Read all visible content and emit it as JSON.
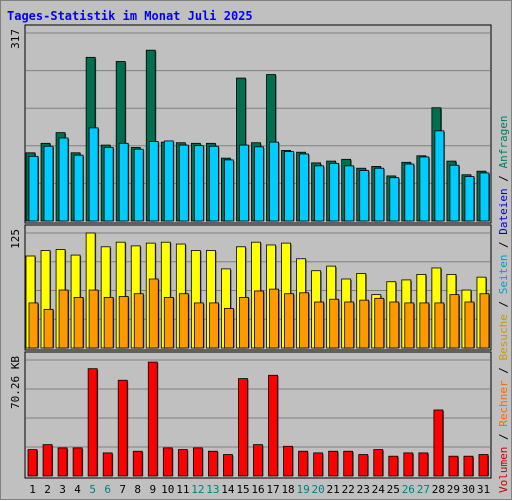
{
  "chart_data": {
    "type": "bar",
    "title": "Tages-Statistik im Monat Juli 2025",
    "days": [
      "1",
      "2",
      "3",
      "4",
      "5",
      "6",
      "7",
      "8",
      "9",
      "10",
      "11",
      "12",
      "13",
      "14",
      "15",
      "16",
      "17",
      "18",
      "19",
      "20",
      "21",
      "22",
      "23",
      "24",
      "25",
      "26",
      "27",
      "28",
      "29",
      "30",
      "31"
    ],
    "weekend_days": [
      "5",
      "6",
      "12",
      "13",
      "19",
      "20",
      "26",
      "27"
    ],
    "colors": {
      "anfragen": "#006f4f",
      "dateien": "#00ccff",
      "seiten": "#ffff00",
      "besuche": "#ff9900",
      "rechner": "#cc6600",
      "volumen": "#ff0000",
      "weekday_label": "#000000",
      "weekend_label": "#008080",
      "title": "#0000ff"
    },
    "panels": [
      {
        "ylabel": "317",
        "ymax": 317,
        "series": [
          {
            "name": "Anfragen",
            "values": [
              115,
              131,
              149,
              115,
              276,
              128,
              269,
              124,
              288,
              133,
              132,
              131,
              131,
              106,
              241,
              132,
              247,
              119,
              116,
              98,
              101,
              104,
              89,
              92,
              76,
              99,
              110,
              191,
              101,
              78,
              84
            ]
          },
          {
            "name": "Dateien",
            "values": [
              109,
              126,
              140,
              111,
              157,
              124,
              131,
              121,
              134,
              135,
              128,
              127,
              126,
              103,
              128,
              125,
              133,
              117,
              113,
              93,
              97,
              93,
              85,
              89,
              73,
              96,
              108,
              152,
              94,
              75,
              81
            ]
          }
        ]
      },
      {
        "ylabel": "125",
        "ymax": 125,
        "series": [
          {
            "name": "Seiten",
            "values": [
              100,
              106,
              107,
              101,
              125,
              110,
              115,
              111,
              114,
              115,
              113,
              106,
              106,
              86,
              110,
              115,
              112,
              114,
              97,
              84,
              89,
              75,
              81,
              58,
              72,
              74,
              80,
              87,
              80,
              63,
              77
            ]
          },
          {
            "name": "Besuche",
            "values": [
              49,
              42,
              63,
              55,
              63,
              55,
              56,
              59,
              75,
              55,
              59,
              49,
              49,
              43,
              55,
              62,
              64,
              59,
              60,
              50,
              53,
              50,
              52,
              54,
              50,
              49,
              49,
              49,
              58,
              50,
              59
            ]
          }
        ]
      },
      {
        "ylabel": "70.26 KB",
        "ymax": 70.26,
        "series": [
          {
            "name": "Volumen",
            "values": [
              16,
              19,
              17,
              17,
              65,
              14,
              58,
              15,
              69,
              17,
              16,
              17,
              15,
              13,
              59,
              19,
              61,
              18,
              15,
              14,
              15,
              15,
              13,
              16,
              12,
              14,
              14,
              40,
              12,
              12,
              13
            ]
          }
        ]
      }
    ],
    "legend": [
      {
        "label": "Volumen",
        "color": "#cc0000"
      },
      {
        "label": "/",
        "color": "#000000"
      },
      {
        "label": "Rechner",
        "color": "#ff6600"
      },
      {
        "label": "/",
        "color": "#000000"
      },
      {
        "label": "Besuche",
        "color": "#cc9900"
      },
      {
        "label": "/",
        "color": "#000000"
      },
      {
        "label": "Seiten",
        "color": "#00a0c8"
      },
      {
        "label": "/",
        "color": "#000000"
      },
      {
        "label": "Dateien",
        "color": "#0000cc"
      },
      {
        "label": "/",
        "color": "#000000"
      },
      {
        "label": "Anfragen",
        "color": "#008060"
      }
    ]
  }
}
